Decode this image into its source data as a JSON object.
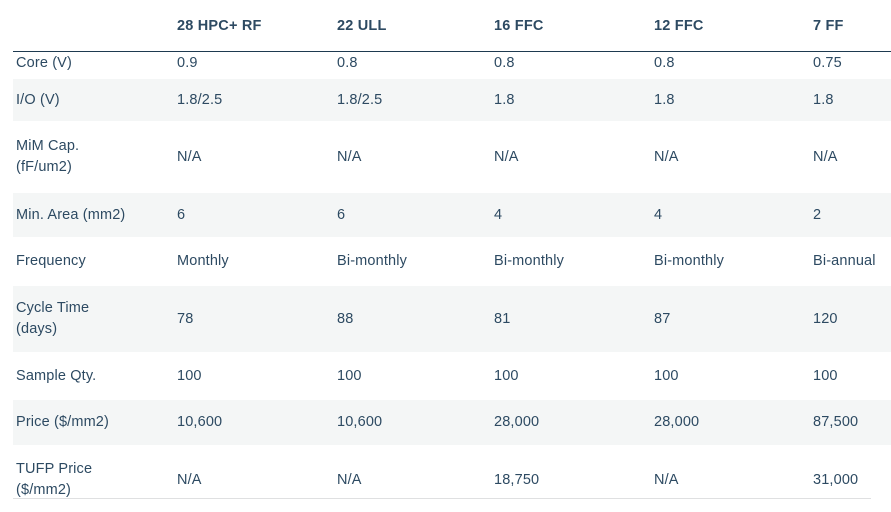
{
  "table": {
    "column_headers": [
      "28 HPC+ RF",
      "22 ULL",
      "16 FFC",
      "12 FFC",
      "7 FF"
    ],
    "rows": [
      {
        "label": "Core (V)",
        "values": [
          "0.9",
          "0.8",
          "0.8",
          "0.8",
          "0.75"
        ]
      },
      {
        "label": "I/O (V)",
        "values": [
          "1.8/2.5",
          "1.8/2.5",
          "1.8",
          "1.8",
          "1.8"
        ]
      },
      {
        "label": "MiM Cap.\n(fF/um2)",
        "values": [
          "N/A",
          "N/A",
          "N/A",
          "N/A",
          "N/A"
        ]
      },
      {
        "label": "Min. Area (mm2)",
        "values": [
          "6",
          "6",
          "4",
          "4",
          "2"
        ]
      },
      {
        "label": "Frequency",
        "values": [
          "Monthly",
          "Bi-monthly",
          "Bi-monthly",
          "Bi-monthly",
          "Bi-annual"
        ]
      },
      {
        "label": "Cycle Time\n(days)",
        "values": [
          "78",
          "88",
          "81",
          "87",
          "120"
        ]
      },
      {
        "label": "Sample Qty.",
        "values": [
          "100",
          "100",
          "100",
          "100",
          "100"
        ]
      },
      {
        "label": "Price ($/mm2)",
        "values": [
          "10,600",
          "10,600",
          "28,000",
          "28,000",
          "87,500"
        ]
      },
      {
        "label": "TUFP Price\n($/mm2)",
        "values": [
          "N/A",
          "N/A",
          "18,750",
          "N/A",
          "31,000"
        ]
      }
    ]
  },
  "colors": {
    "text": "#2d4a62",
    "header_divider": "#1e3a50",
    "row_alt_bg": "#f4f6f6",
    "bottom_divider": "#dfe0e1"
  }
}
